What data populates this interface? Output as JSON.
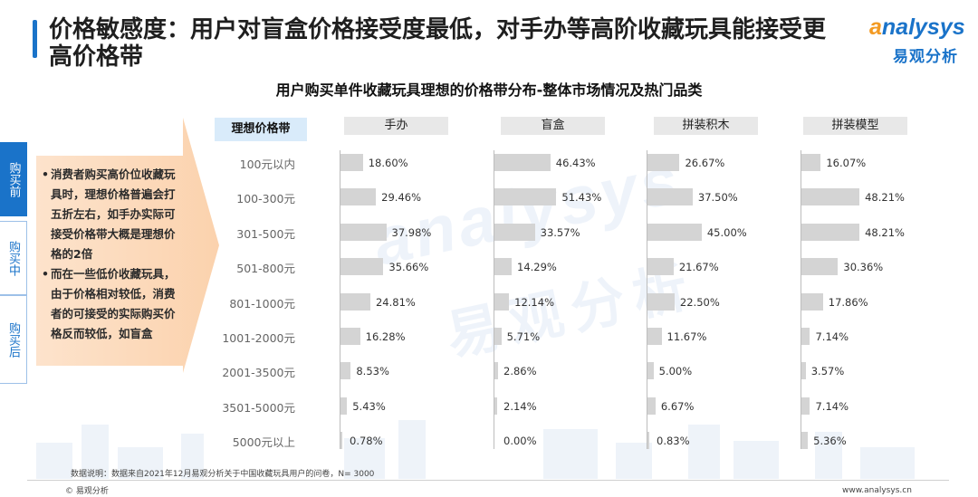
{
  "header": {
    "title": "价格敏感度：用户对盲盒价格接受度最低，对手办等高阶收藏玩具能接受更高价格带",
    "logo_en_a": "a",
    "logo_en_rest": "nalysys",
    "logo_cn": "易观分析"
  },
  "side_tabs": [
    "购买前",
    "购买中",
    "购买后"
  ],
  "callout": {
    "bullets": [
      "消费者购买高价位收藏玩具时，理想价格普遍会打五折左右，如手办实际可接受价格带大概是理想价格的2倍",
      "而在一些低价收藏玩具，由于价格相对较低，消费者的可接受的实际购买价格反而较低，如盲盒"
    ]
  },
  "watermark": {
    "en": "analysys",
    "cn": "易观分析"
  },
  "chart_data": {
    "type": "bar",
    "title": "用户购买单件收藏玩具理想的价格带分布-整体市场情况及热门品类",
    "row_header": "理想价格带",
    "categories": [
      "100元以内",
      "100-300元",
      "301-500元",
      "501-800元",
      "801-1000元",
      "1001-2000元",
      "2001-3500元",
      "3501-5000元",
      "5000元以上"
    ],
    "series": [
      {
        "name": "手办",
        "values": [
          18.6,
          29.46,
          37.98,
          35.66,
          24.81,
          16.28,
          8.53,
          5.43,
          0.78
        ],
        "labels": [
          "18.60%",
          "29.46%",
          "37.98%",
          "35.66%",
          "24.81%",
          "16.28%",
          "8.53%",
          "5.43%",
          "0.78%"
        ]
      },
      {
        "name": "盲盒",
        "values": [
          46.43,
          51.43,
          33.57,
          14.29,
          12.14,
          5.71,
          2.86,
          2.14,
          0.0
        ],
        "labels": [
          "46.43%",
          "51.43%",
          "33.57%",
          "14.29%",
          "12.14%",
          "5.71%",
          "2.86%",
          "2.14%",
          "0.00%"
        ]
      },
      {
        "name": "拼装积木",
        "values": [
          26.67,
          37.5,
          45.0,
          21.67,
          22.5,
          11.67,
          5.0,
          6.67,
          0.83
        ],
        "labels": [
          "26.67%",
          "37.50%",
          "45.00%",
          "21.67%",
          "22.50%",
          "11.67%",
          "5.00%",
          "6.67%",
          "0.83%"
        ]
      },
      {
        "name": "拼装模型",
        "values": [
          16.07,
          48.21,
          48.21,
          30.36,
          17.86,
          7.14,
          3.57,
          7.14,
          5.36
        ],
        "labels": [
          "16.07%",
          "48.21%",
          "48.21%",
          "30.36%",
          "17.86%",
          "7.14%",
          "3.57%",
          "7.14%",
          "5.36%"
        ]
      }
    ],
    "bar_color": "#d4d4d4"
  },
  "footer": {
    "note": "数据说明：数据来自2021年12月易观分析关于中国收藏玩具用户的问卷，N= 3000",
    "copyright": "© 易观分析",
    "site": "www.analysys.cn"
  }
}
